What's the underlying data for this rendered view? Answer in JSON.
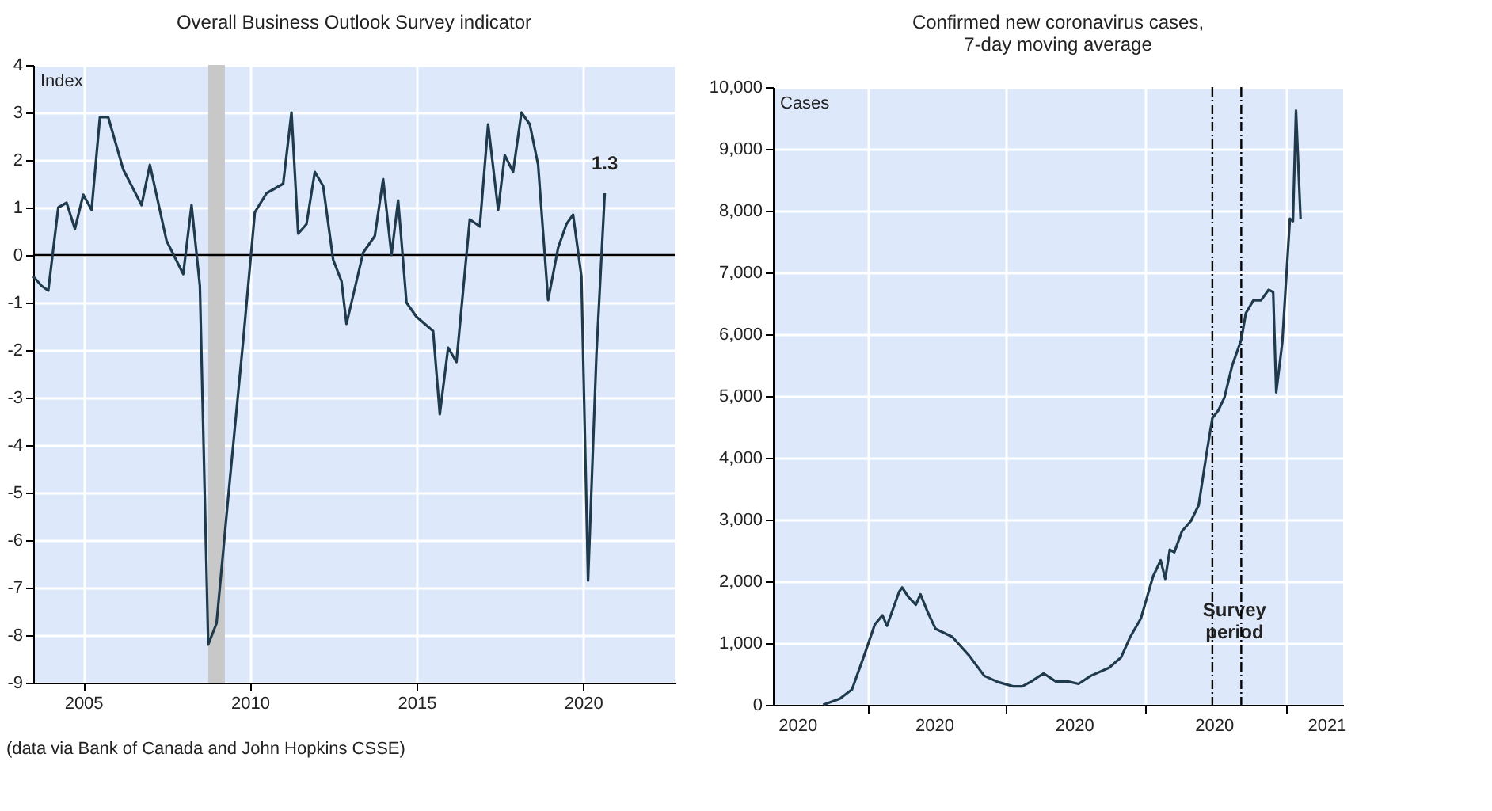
{
  "chart_data": [
    {
      "type": "line",
      "title": "Overall Business Outlook Survey indicator",
      "ylabel": "Index",
      "x": [
        2003.5,
        2003.75,
        2003.95,
        2004.25,
        2004.5,
        2004.75,
        2005.0,
        2005.25,
        2005.5,
        2005.75,
        2006.2,
        2006.75,
        2007.0,
        2007.5,
        2008.0,
        2008.25,
        2008.5,
        2008.75,
        2009.0,
        2009.35,
        2009.8,
        2010.15,
        2010.5,
        2011.0,
        2011.25,
        2011.45,
        2011.7,
        2011.95,
        2012.2,
        2012.5,
        2012.75,
        2012.9,
        2013.4,
        2013.75,
        2014.0,
        2014.25,
        2014.45,
        2014.7,
        2015.0,
        2015.5,
        2015.7,
        2015.95,
        2016.2,
        2016.6,
        2016.9,
        2017.15,
        2017.45,
        2017.65,
        2017.9,
        2018.15,
        2018.4,
        2018.65,
        2018.95,
        2019.25,
        2019.5,
        2019.7,
        2019.95,
        2020.15,
        2020.4,
        2020.65
      ],
      "series": [
        {
          "color": "#1f3a4d",
          "values": [
            -0.45,
            -0.65,
            -0.75,
            1.0,
            1.1,
            0.55,
            1.27,
            0.95,
            2.9,
            2.9,
            1.8,
            1.05,
            1.9,
            0.3,
            -0.4,
            1.05,
            -0.65,
            -8.2,
            -7.75,
            -5.1,
            -1.8,
            0.9,
            1.3,
            1.5,
            3.0,
            0.45,
            0.65,
            1.75,
            1.45,
            -0.1,
            -0.55,
            -1.45,
            0.05,
            0.4,
            1.6,
            0.0,
            1.15,
            -1.0,
            -1.3,
            -1.6,
            -3.35,
            -1.95,
            -2.25,
            0.75,
            0.6,
            2.75,
            0.95,
            2.1,
            1.75,
            3.0,
            2.75,
            1.9,
            -0.95,
            0.15,
            0.65,
            0.85,
            -0.45,
            -6.85,
            -2.1,
            1.3
          ]
        }
      ],
      "xlim": [
        2003.5,
        2022.75
      ],
      "xticks": [
        2005,
        2010,
        2015,
        2020
      ],
      "ylim": [
        -9,
        4
      ],
      "yticks": [
        -9,
        -8,
        -7,
        -6,
        -5,
        -4,
        -3,
        -2,
        -1,
        0,
        1,
        2,
        3,
        4
      ],
      "grid": true,
      "ref_lines": [
        {
          "axis": "y",
          "value": 0,
          "color": "#000000"
        }
      ],
      "bands": [
        {
          "axis": "x",
          "from": 2008.75,
          "to": 2009.25,
          "color": "#c8c8c8"
        }
      ],
      "annotations": [
        {
          "text": "1.3",
          "x": 2020.65,
          "y": 1.3
        },
        "(data via Bank of Canada and John Hopkins CSSE)"
      ]
    },
    {
      "type": "line",
      "title": "Confirmed new coronavirus cases,\n7-day moving average",
      "ylabel": "Cases",
      "x": [
        "2020-03-03",
        "2020-03-14",
        "2020-03-22",
        "2020-03-30",
        "2020-04-06",
        "2020-04-11",
        "2020-04-14",
        "2020-04-22",
        "2020-04-24",
        "2020-04-28",
        "2020-05-03",
        "2020-05-06",
        "2020-05-11",
        "2020-05-16",
        "2020-05-27",
        "2020-06-07",
        "2020-06-17",
        "2020-06-26",
        "2020-07-06",
        "2020-07-12",
        "2020-07-18",
        "2020-07-26",
        "2020-08-03",
        "2020-08-11",
        "2020-08-18",
        "2020-08-26",
        "2020-09-07",
        "2020-09-15",
        "2020-09-21",
        "2020-09-28",
        "2020-10-06",
        "2020-10-11",
        "2020-10-14",
        "2020-10-17",
        "2020-10-20",
        "2020-10-25",
        "2020-10-31",
        "2020-11-05",
        "2020-11-10",
        "2020-11-14",
        "2020-11-18",
        "2020-11-22",
        "2020-11-27",
        "2020-12-03",
        "2020-12-06",
        "2020-12-11",
        "2020-12-16",
        "2020-12-21",
        "2020-12-24",
        "2020-12-26",
        "2020-12-30",
        "2021-01-01",
        "2021-01-04",
        "2021-01-06",
        "2021-01-08",
        "2021-01-11"
      ],
      "series": [
        {
          "color": "#1f3a4d",
          "values": [
            0,
            100,
            250,
            800,
            1300,
            1450,
            1280,
            1830,
            1900,
            1750,
            1620,
            1790,
            1490,
            1230,
            1100,
            800,
            470,
            370,
            300,
            300,
            380,
            510,
            380,
            380,
            340,
            470,
            600,
            770,
            1100,
            1400,
            2080,
            2340,
            2040,
            2510,
            2470,
            2810,
            2980,
            3230,
            4040,
            4640,
            4770,
            4980,
            5490,
            5910,
            6340,
            6550,
            6550,
            6720,
            6680,
            5060,
            5870,
            6680,
            7870,
            7830,
            9620,
            7870
          ]
        }
      ],
      "xlim": [
        "2020-01-30",
        "2021-02-08"
      ],
      "xticks": [
        {
          "value": "2020-02-15",
          "label": "2020"
        },
        {
          "value": "2020-04-01",
          "label": null
        },
        {
          "value": "2020-05-15",
          "label": "2020"
        },
        {
          "value": "2020-07-01",
          "label": null
        },
        {
          "value": "2020-08-15",
          "label": "2020"
        },
        {
          "value": "2020-10-01",
          "label": null
        },
        {
          "value": "2020-11-15",
          "label": "2020"
        },
        {
          "value": "2021-01-01",
          "label": null
        },
        {
          "value": "2021-01-28",
          "label": "2021"
        }
      ],
      "ylim": [
        0,
        10000
      ],
      "yticks": [
        {
          "value": 0,
          "label": "0"
        },
        {
          "value": 1000,
          "label": "1,000"
        },
        {
          "value": 2000,
          "label": "2,000"
        },
        {
          "value": 3000,
          "label": "3,000"
        },
        {
          "value": 4000,
          "label": "4,000"
        },
        {
          "value": 5000,
          "label": "5,000"
        },
        {
          "value": 6000,
          "label": "6,000"
        },
        {
          "value": 7000,
          "label": "7,000"
        },
        {
          "value": 8000,
          "label": "8,000"
        },
        {
          "value": 9000,
          "label": "9,000"
        },
        {
          "value": 10000,
          "label": "10,000"
        }
      ],
      "grid": true,
      "ref_lines": [
        {
          "axis": "x",
          "value": "2020-11-14",
          "color": "#000000",
          "line_style": "dashed",
          "label": "Survey period"
        },
        {
          "axis": "x",
          "value": "2020-12-03",
          "color": "#000000",
          "line_style": "dashed"
        }
      ]
    }
  ]
}
